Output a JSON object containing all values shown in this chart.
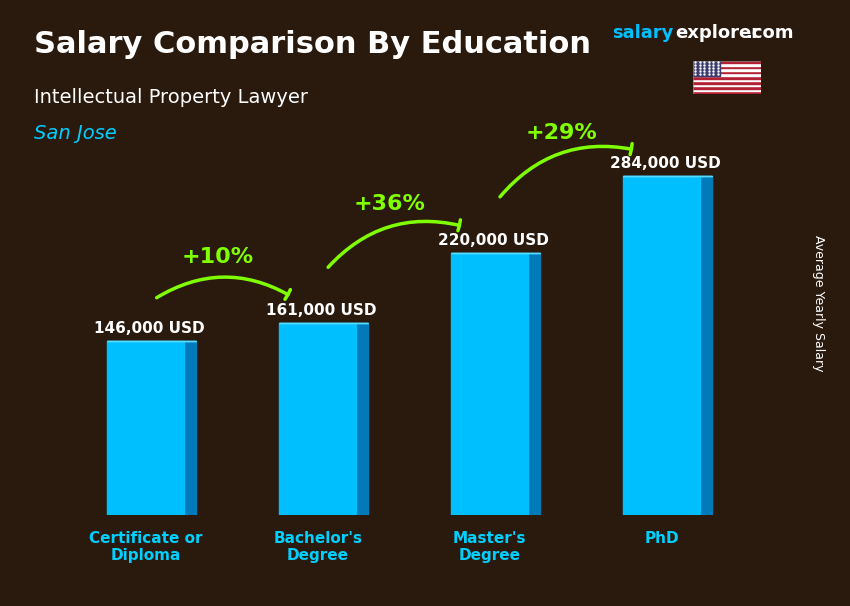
{
  "title": "Salary Comparison By Education",
  "subtitle": "Intellectual Property Lawyer",
  "city": "San Jose",
  "ylabel": "Average Yearly Salary",
  "website_salary": "salary",
  "website_explorer": "explorer",
  "website_com": ".com",
  "categories": [
    "Certificate or\nDiploma",
    "Bachelor's\nDegree",
    "Master's\nDegree",
    "PhD"
  ],
  "values": [
    146000,
    161000,
    220000,
    284000
  ],
  "value_labels": [
    "146,000 USD",
    "161,000 USD",
    "220,000 USD",
    "284,000 USD"
  ],
  "pct_labels": [
    "+10%",
    "+36%",
    "+29%"
  ],
  "bar_color_face": "#00BFFF",
  "bar_color_dark": "#007AB8",
  "bar_color_side": "#0090CC",
  "bg_color": "#2a1a0e",
  "title_color": "#FFFFFF",
  "subtitle_color": "#FFFFFF",
  "city_color": "#00CFFF",
  "value_color": "#FFFFFF",
  "pct_color": "#7FFF00",
  "ylabel_color": "#FFFFFF",
  "website_color1": "#00BFFF",
  "website_color2": "#FFFFFF",
  "arrow_color": "#7FFF00",
  "ylim": [
    0,
    320000
  ]
}
